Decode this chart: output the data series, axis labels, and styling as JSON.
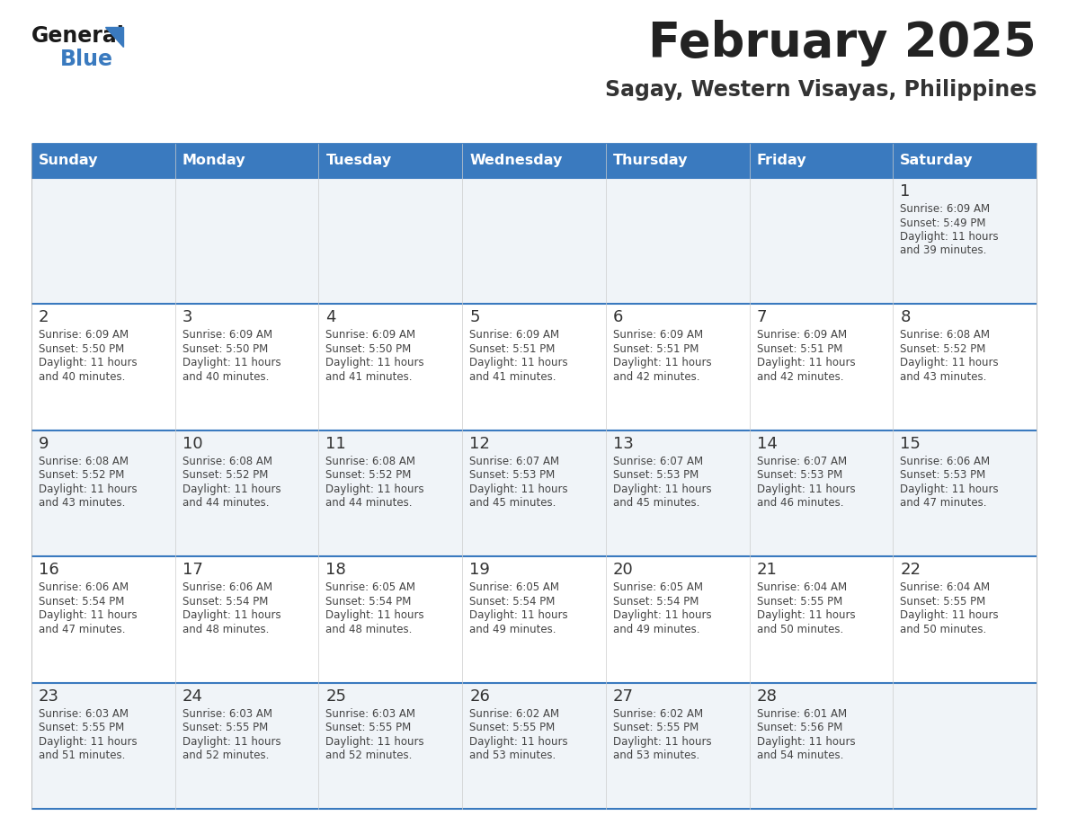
{
  "title": "February 2025",
  "subtitle": "Sagay, Western Visayas, Philippines",
  "days_of_week": [
    "Sunday",
    "Monday",
    "Tuesday",
    "Wednesday",
    "Thursday",
    "Friday",
    "Saturday"
  ],
  "header_bg": "#3a7abf",
  "header_text": "#ffffff",
  "row_bg_odd": "#f0f4f8",
  "row_bg_even": "#ffffff",
  "cell_border": "#3a7abf",
  "day_number_color": "#333333",
  "info_text_color": "#444444",
  "title_color": "#222222",
  "subtitle_color": "#333333",
  "calendar_data": [
    [
      {
        "day": "",
        "sunrise": "",
        "sunset": "",
        "daylight": ""
      },
      {
        "day": "",
        "sunrise": "",
        "sunset": "",
        "daylight": ""
      },
      {
        "day": "",
        "sunrise": "",
        "sunset": "",
        "daylight": ""
      },
      {
        "day": "",
        "sunrise": "",
        "sunset": "",
        "daylight": ""
      },
      {
        "day": "",
        "sunrise": "",
        "sunset": "",
        "daylight": ""
      },
      {
        "day": "",
        "sunrise": "",
        "sunset": "",
        "daylight": ""
      },
      {
        "day": "1",
        "sunrise": "6:09 AM",
        "sunset": "5:49 PM",
        "daylight_line1": "Daylight: 11 hours",
        "daylight_line2": "and 39 minutes."
      }
    ],
    [
      {
        "day": "2",
        "sunrise": "6:09 AM",
        "sunset": "5:50 PM",
        "daylight_line1": "Daylight: 11 hours",
        "daylight_line2": "and 40 minutes."
      },
      {
        "day": "3",
        "sunrise": "6:09 AM",
        "sunset": "5:50 PM",
        "daylight_line1": "Daylight: 11 hours",
        "daylight_line2": "and 40 minutes."
      },
      {
        "day": "4",
        "sunrise": "6:09 AM",
        "sunset": "5:50 PM",
        "daylight_line1": "Daylight: 11 hours",
        "daylight_line2": "and 41 minutes."
      },
      {
        "day": "5",
        "sunrise": "6:09 AM",
        "sunset": "5:51 PM",
        "daylight_line1": "Daylight: 11 hours",
        "daylight_line2": "and 41 minutes."
      },
      {
        "day": "6",
        "sunrise": "6:09 AM",
        "sunset": "5:51 PM",
        "daylight_line1": "Daylight: 11 hours",
        "daylight_line2": "and 42 minutes."
      },
      {
        "day": "7",
        "sunrise": "6:09 AM",
        "sunset": "5:51 PM",
        "daylight_line1": "Daylight: 11 hours",
        "daylight_line2": "and 42 minutes."
      },
      {
        "day": "8",
        "sunrise": "6:08 AM",
        "sunset": "5:52 PM",
        "daylight_line1": "Daylight: 11 hours",
        "daylight_line2": "and 43 minutes."
      }
    ],
    [
      {
        "day": "9",
        "sunrise": "6:08 AM",
        "sunset": "5:52 PM",
        "daylight_line1": "Daylight: 11 hours",
        "daylight_line2": "and 43 minutes."
      },
      {
        "day": "10",
        "sunrise": "6:08 AM",
        "sunset": "5:52 PM",
        "daylight_line1": "Daylight: 11 hours",
        "daylight_line2": "and 44 minutes."
      },
      {
        "day": "11",
        "sunrise": "6:08 AM",
        "sunset": "5:52 PM",
        "daylight_line1": "Daylight: 11 hours",
        "daylight_line2": "and 44 minutes."
      },
      {
        "day": "12",
        "sunrise": "6:07 AM",
        "sunset": "5:53 PM",
        "daylight_line1": "Daylight: 11 hours",
        "daylight_line2": "and 45 minutes."
      },
      {
        "day": "13",
        "sunrise": "6:07 AM",
        "sunset": "5:53 PM",
        "daylight_line1": "Daylight: 11 hours",
        "daylight_line2": "and 45 minutes."
      },
      {
        "day": "14",
        "sunrise": "6:07 AM",
        "sunset": "5:53 PM",
        "daylight_line1": "Daylight: 11 hours",
        "daylight_line2": "and 46 minutes."
      },
      {
        "day": "15",
        "sunrise": "6:06 AM",
        "sunset": "5:53 PM",
        "daylight_line1": "Daylight: 11 hours",
        "daylight_line2": "and 47 minutes."
      }
    ],
    [
      {
        "day": "16",
        "sunrise": "6:06 AM",
        "sunset": "5:54 PM",
        "daylight_line1": "Daylight: 11 hours",
        "daylight_line2": "and 47 minutes."
      },
      {
        "day": "17",
        "sunrise": "6:06 AM",
        "sunset": "5:54 PM",
        "daylight_line1": "Daylight: 11 hours",
        "daylight_line2": "and 48 minutes."
      },
      {
        "day": "18",
        "sunrise": "6:05 AM",
        "sunset": "5:54 PM",
        "daylight_line1": "Daylight: 11 hours",
        "daylight_line2": "and 48 minutes."
      },
      {
        "day": "19",
        "sunrise": "6:05 AM",
        "sunset": "5:54 PM",
        "daylight_line1": "Daylight: 11 hours",
        "daylight_line2": "and 49 minutes."
      },
      {
        "day": "20",
        "sunrise": "6:05 AM",
        "sunset": "5:54 PM",
        "daylight_line1": "Daylight: 11 hours",
        "daylight_line2": "and 49 minutes."
      },
      {
        "day": "21",
        "sunrise": "6:04 AM",
        "sunset": "5:55 PM",
        "daylight_line1": "Daylight: 11 hours",
        "daylight_line2": "and 50 minutes."
      },
      {
        "day": "22",
        "sunrise": "6:04 AM",
        "sunset": "5:55 PM",
        "daylight_line1": "Daylight: 11 hours",
        "daylight_line2": "and 50 minutes."
      }
    ],
    [
      {
        "day": "23",
        "sunrise": "6:03 AM",
        "sunset": "5:55 PM",
        "daylight_line1": "Daylight: 11 hours",
        "daylight_line2": "and 51 minutes."
      },
      {
        "day": "24",
        "sunrise": "6:03 AM",
        "sunset": "5:55 PM",
        "daylight_line1": "Daylight: 11 hours",
        "daylight_line2": "and 52 minutes."
      },
      {
        "day": "25",
        "sunrise": "6:03 AM",
        "sunset": "5:55 PM",
        "daylight_line1": "Daylight: 11 hours",
        "daylight_line2": "and 52 minutes."
      },
      {
        "day": "26",
        "sunrise": "6:02 AM",
        "sunset": "5:55 PM",
        "daylight_line1": "Daylight: 11 hours",
        "daylight_line2": "and 53 minutes."
      },
      {
        "day": "27",
        "sunrise": "6:02 AM",
        "sunset": "5:55 PM",
        "daylight_line1": "Daylight: 11 hours",
        "daylight_line2": "and 53 minutes."
      },
      {
        "day": "28",
        "sunrise": "6:01 AM",
        "sunset": "5:56 PM",
        "daylight_line1": "Daylight: 11 hours",
        "daylight_line2": "and 54 minutes."
      },
      {
        "day": "",
        "sunrise": "",
        "sunset": "",
        "daylight_line1": "",
        "daylight_line2": ""
      }
    ]
  ]
}
